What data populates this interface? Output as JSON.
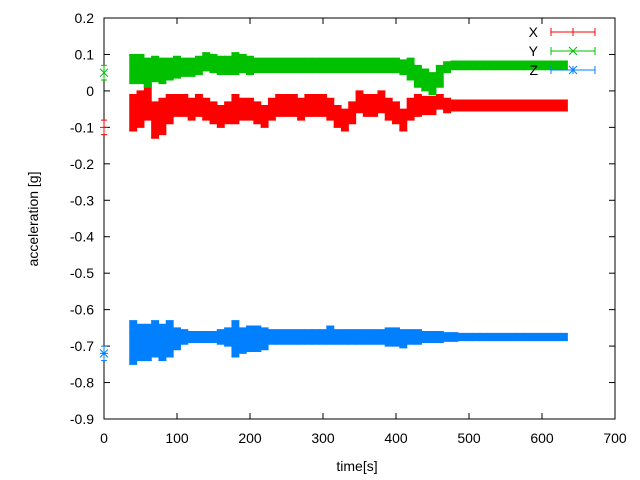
{
  "chart_data": {
    "type": "scatter",
    "title": "",
    "xlabel": "time[s]",
    "ylabel": "acceleration [g]",
    "xlim": [
      0,
      700
    ],
    "ylim": [
      -0.9,
      0.2
    ],
    "xticks": [
      "0",
      "100",
      "200",
      "300",
      "400",
      "500",
      "600",
      "700"
    ],
    "yticks": [
      "0.2",
      "0.1",
      "0",
      "-0.1",
      "-0.2",
      "-0.3",
      "-0.4",
      "-0.5",
      "-0.6",
      "-0.7",
      "-0.8",
      "-0.9"
    ],
    "grid": false,
    "legend_position": "top-right",
    "x": [
      0,
      40,
      50,
      60,
      70,
      80,
      90,
      100,
      110,
      120,
      130,
      140,
      150,
      160,
      170,
      180,
      190,
      200,
      210,
      220,
      230,
      240,
      250,
      260,
      270,
      280,
      290,
      300,
      310,
      320,
      330,
      340,
      350,
      360,
      370,
      380,
      390,
      400,
      410,
      420,
      430,
      440,
      450,
      460,
      470,
      480,
      490,
      500,
      510,
      520,
      530,
      540,
      550,
      560,
      570,
      580,
      590,
      600,
      610,
      620,
      630
    ],
    "series": [
      {
        "name": "X",
        "color": "#ff0000",
        "marker": "+",
        "values": [
          -0.1,
          -0.06,
          -0.05,
          -0.03,
          -0.08,
          -0.07,
          -0.05,
          -0.04,
          -0.04,
          -0.05,
          -0.04,
          -0.05,
          -0.06,
          -0.07,
          -0.06,
          -0.05,
          -0.05,
          -0.05,
          -0.06,
          -0.07,
          -0.05,
          -0.04,
          -0.04,
          -0.04,
          -0.05,
          -0.04,
          -0.04,
          -0.04,
          -0.05,
          -0.07,
          -0.08,
          -0.06,
          -0.03,
          -0.04,
          -0.04,
          -0.03,
          -0.05,
          -0.06,
          -0.08,
          -0.05,
          -0.04,
          -0.04,
          -0.04,
          -0.03,
          -0.04,
          -0.04,
          -0.04,
          -0.04,
          -0.04,
          -0.04,
          -0.04,
          -0.04,
          -0.04,
          -0.04,
          -0.04,
          -0.04,
          -0.04,
          -0.04,
          -0.04,
          -0.04,
          -0.04
        ],
        "errors": [
          0.02,
          0.05,
          0.05,
          0.05,
          0.05,
          0.05,
          0.04,
          0.03,
          0.03,
          0.03,
          0.03,
          0.03,
          0.03,
          0.03,
          0.03,
          0.04,
          0.03,
          0.03,
          0.03,
          0.03,
          0.03,
          0.03,
          0.03,
          0.03,
          0.03,
          0.03,
          0.03,
          0.03,
          0.03,
          0.03,
          0.03,
          0.03,
          0.03,
          0.03,
          0.03,
          0.03,
          0.03,
          0.03,
          0.03,
          0.03,
          0.03,
          0.025,
          0.025,
          0.02,
          0.02,
          0.015,
          0.015,
          0.015,
          0.015,
          0.015,
          0.015,
          0.015,
          0.015,
          0.015,
          0.015,
          0.015,
          0.015,
          0.015,
          0.015,
          0.015,
          0.015
        ]
      },
      {
        "name": "Y",
        "color": "#00c000",
        "marker": "x",
        "values": [
          0.05,
          0.06,
          0.06,
          0.05,
          0.06,
          0.055,
          0.06,
          0.065,
          0.065,
          0.065,
          0.07,
          0.08,
          0.075,
          0.07,
          0.07,
          0.075,
          0.075,
          0.07,
          0.07,
          0.07,
          0.07,
          0.07,
          0.07,
          0.07,
          0.07,
          0.07,
          0.07,
          0.07,
          0.07,
          0.07,
          0.07,
          0.07,
          0.07,
          0.07,
          0.07,
          0.07,
          0.07,
          0.07,
          0.065,
          0.06,
          0.04,
          0.03,
          0.02,
          0.04,
          0.065,
          0.07,
          0.07,
          0.07,
          0.07,
          0.07,
          0.07,
          0.07,
          0.07,
          0.07,
          0.07,
          0.07,
          0.07,
          0.07,
          0.07,
          0.07,
          0.07
        ],
        "errors": [
          0.02,
          0.04,
          0.04,
          0.04,
          0.035,
          0.035,
          0.03,
          0.03,
          0.025,
          0.025,
          0.025,
          0.025,
          0.025,
          0.025,
          0.025,
          0.03,
          0.025,
          0.025,
          0.02,
          0.02,
          0.02,
          0.02,
          0.02,
          0.02,
          0.02,
          0.02,
          0.02,
          0.02,
          0.02,
          0.02,
          0.02,
          0.02,
          0.02,
          0.02,
          0.02,
          0.02,
          0.02,
          0.02,
          0.02,
          0.03,
          0.03,
          0.03,
          0.03,
          0.03,
          0.015,
          0.012,
          0.012,
          0.012,
          0.012,
          0.012,
          0.012,
          0.012,
          0.012,
          0.012,
          0.012,
          0.012,
          0.012,
          0.012,
          0.012,
          0.012,
          0.012
        ]
      },
      {
        "name": "Z",
        "color": "#0080ff",
        "marker": "*",
        "values": [
          -0.72,
          -0.69,
          -0.69,
          -0.69,
          -0.68,
          -0.69,
          -0.68,
          -0.68,
          -0.675,
          -0.675,
          -0.675,
          -0.675,
          -0.675,
          -0.675,
          -0.675,
          -0.68,
          -0.685,
          -0.68,
          -0.68,
          -0.68,
          -0.675,
          -0.675,
          -0.675,
          -0.675,
          -0.675,
          -0.675,
          -0.675,
          -0.675,
          -0.67,
          -0.675,
          -0.675,
          -0.675,
          -0.675,
          -0.675,
          -0.675,
          -0.675,
          -0.675,
          -0.675,
          -0.68,
          -0.675,
          -0.675,
          -0.675,
          -0.675,
          -0.675,
          -0.675,
          -0.675,
          -0.675,
          -0.675,
          -0.675,
          -0.675,
          -0.675,
          -0.675,
          -0.675,
          -0.675,
          -0.675,
          -0.675,
          -0.675,
          -0.675,
          -0.675,
          -0.675,
          -0.675
        ],
        "errors": [
          0.02,
          0.06,
          0.05,
          0.05,
          0.05,
          0.05,
          0.05,
          0.03,
          0.02,
          0.015,
          0.015,
          0.015,
          0.015,
          0.02,
          0.025,
          0.05,
          0.035,
          0.035,
          0.035,
          0.03,
          0.02,
          0.02,
          0.02,
          0.02,
          0.02,
          0.02,
          0.02,
          0.02,
          0.025,
          0.02,
          0.02,
          0.02,
          0.02,
          0.02,
          0.02,
          0.02,
          0.025,
          0.025,
          0.025,
          0.02,
          0.02,
          0.015,
          0.015,
          0.015,
          0.012,
          0.012,
          0.01,
          0.01,
          0.01,
          0.01,
          0.01,
          0.01,
          0.01,
          0.01,
          0.01,
          0.01,
          0.01,
          0.01,
          0.01,
          0.01,
          0.01
        ]
      }
    ]
  }
}
